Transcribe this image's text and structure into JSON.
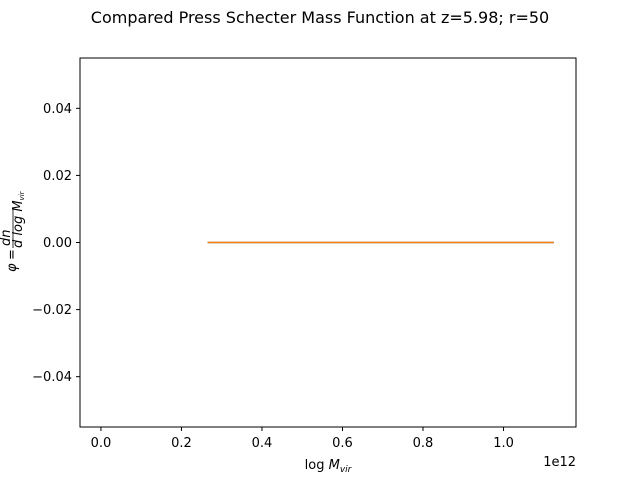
{
  "chart_data": {
    "type": "line",
    "title": "Compared Press Schecter Mass Function at z=5.98; r=50",
    "xlabel": "log M_vir",
    "ylabel": "φ = dn / d log M_vir",
    "x_offset_label": "1e12",
    "xlim": [
      -0.052,
      1.18
    ],
    "ylim": [
      -0.055,
      0.055
    ],
    "xticks": [
      0.0,
      0.2,
      0.4,
      0.6,
      0.8,
      1.0
    ],
    "xtick_labels": [
      "0.0",
      "0.2",
      "0.4",
      "0.6",
      "0.8",
      "1.0"
    ],
    "yticks": [
      -0.04,
      -0.02,
      0.0,
      0.02,
      0.04
    ],
    "ytick_labels": [
      "−0.04",
      "−0.02",
      "0.00",
      "0.02",
      "0.04"
    ],
    "grid": false,
    "series": [
      {
        "color": "#1f77b4",
        "x": [
          0.265,
          1.125
        ],
        "y": [
          0.0,
          0.0
        ]
      },
      {
        "color": "#ff7f0e",
        "x": [
          0.265,
          1.125
        ],
        "y": [
          0.0,
          0.0
        ]
      }
    ]
  }
}
